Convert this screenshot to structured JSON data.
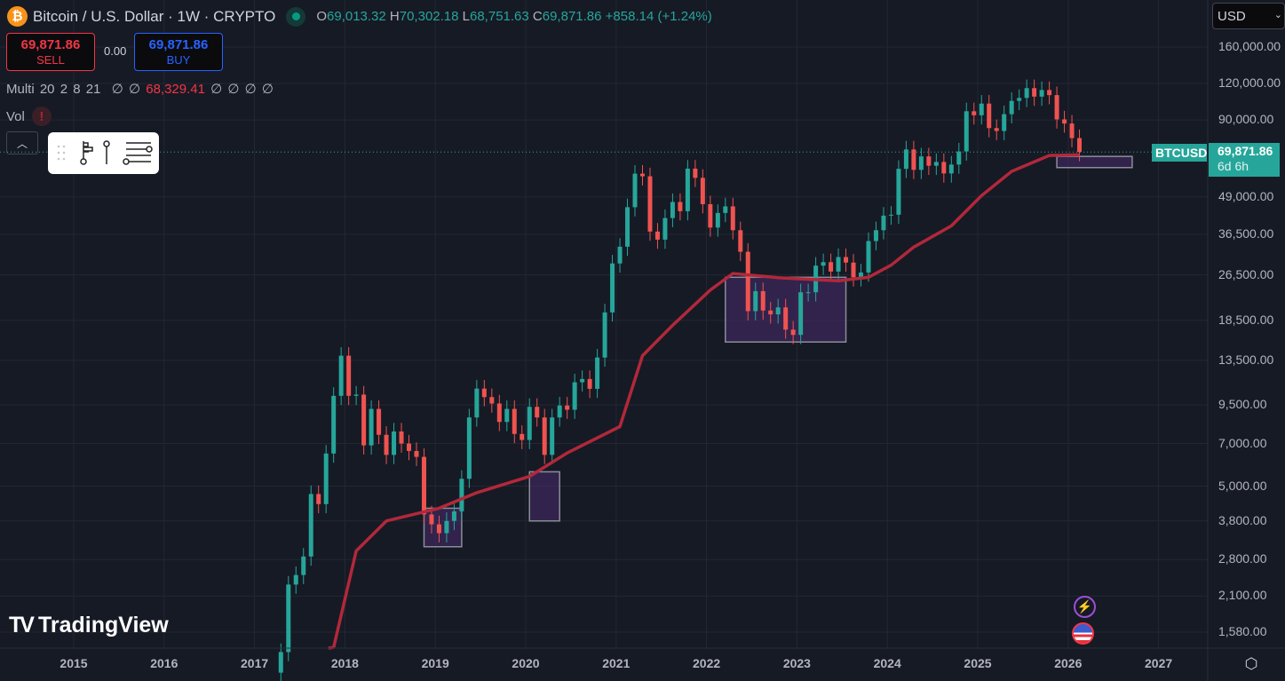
{
  "header": {
    "symbol_icon": "bitcoin-icon",
    "title": "Bitcoin / U.S. Dollar · 1W · CRYPTO",
    "market_status": "open",
    "ohlc": {
      "o_label": "O",
      "o": "69,013.32",
      "h_label": "H",
      "h": "70,302.18",
      "l_label": "L",
      "l": "68,751.63",
      "c_label": "C",
      "c": "69,871.86",
      "change": "+858.14 (+1.24%)"
    }
  },
  "trade": {
    "sell_price": "69,871.86",
    "sell_label": "SELL",
    "spread": "0.00",
    "buy_price": "69,871.86",
    "buy_label": "BUY"
  },
  "indicators": {
    "multi_label": "Multi 20 2 8 21",
    "multi_values_before": "∅ ∅",
    "multi_value": "68,329.41",
    "multi_values_after": "∅ ∅ ∅ ∅",
    "vol_label": "Vol",
    "vol_warning": "!"
  },
  "toolbar": {
    "icons": [
      "drag-handle-icon",
      "fib-tool-icon",
      "pin-line-icon",
      "horizontal-lines-icon"
    ]
  },
  "price_axis": {
    "currency": "USD",
    "ticks": [
      "160,000.00",
      "120,000.00",
      "90,000.00",
      "49,000.00",
      "36,500.00",
      "26,500.00",
      "18,500.00",
      "13,500.00",
      "9,500.00",
      "7,000.00",
      "5,000.00",
      "3,800.00",
      "2,800.00",
      "2,100.00",
      "1,580.00"
    ],
    "symbol_tag": "BTCUSD",
    "last_price": "69,871.86",
    "countdown": "6d 6h"
  },
  "time_axis": {
    "ticks": [
      "2015",
      "2016",
      "2017",
      "2018",
      "2019",
      "2020",
      "2021",
      "2022",
      "2023",
      "2024",
      "2025",
      "2026",
      "2027"
    ]
  },
  "branding": {
    "logo": "TradingView"
  },
  "colors": {
    "bg": "#161a25",
    "up": "#26a69a",
    "down": "#ef5350",
    "ma": "#b2283a",
    "box_fill": "#4a2c6e",
    "box_stroke": "#8a8d99"
  },
  "chart_data": {
    "type": "candlestick",
    "title": "Bitcoin / U.S. Dollar · 1W · CRYPTO",
    "y_scale": "log",
    "ylim": [
      1400,
      180000
    ],
    "xlim": [
      "2014-09",
      "2027-08"
    ],
    "grid": true,
    "price_series_approx_monthly_close": {
      "dates": [
        "2017-04",
        "2017-05",
        "2017-06",
        "2017-07",
        "2017-08",
        "2017-09",
        "2017-10",
        "2017-11",
        "2017-12",
        "2018-01",
        "2018-02",
        "2018-03",
        "2018-04",
        "2018-05",
        "2018-06",
        "2018-07",
        "2018-08",
        "2018-09",
        "2018-10",
        "2018-11",
        "2018-12",
        "2019-01",
        "2019-02",
        "2019-03",
        "2019-04",
        "2019-05",
        "2019-06",
        "2019-07",
        "2019-08",
        "2019-09",
        "2019-10",
        "2019-11",
        "2019-12",
        "2020-01",
        "2020-02",
        "2020-03",
        "2020-04",
        "2020-05",
        "2020-06",
        "2020-07",
        "2020-08",
        "2020-09",
        "2020-10",
        "2020-11",
        "2020-12",
        "2021-01",
        "2021-02",
        "2021-03",
        "2021-04",
        "2021-05",
        "2021-06",
        "2021-07",
        "2021-08",
        "2021-09",
        "2021-10",
        "2021-11",
        "2021-12",
        "2022-01",
        "2022-02",
        "2022-03",
        "2022-04",
        "2022-05",
        "2022-06",
        "2022-07",
        "2022-08",
        "2022-09",
        "2022-10",
        "2022-11",
        "2022-12",
        "2023-01",
        "2023-02",
        "2023-03",
        "2023-04",
        "2023-05",
        "2023-06",
        "2023-07",
        "2023-08",
        "2023-09",
        "2023-10",
        "2023-11",
        "2023-12",
        "2024-01",
        "2024-02",
        "2024-03",
        "2024-04",
        "2024-05",
        "2024-06",
        "2024-07",
        "2024-08",
        "2024-09",
        "2024-10",
        "2024-11",
        "2024-12",
        "2025-01",
        "2025-02",
        "2025-03",
        "2025-04",
        "2025-05",
        "2025-06",
        "2025-07",
        "2025-08",
        "2025-09",
        "2025-10",
        "2025-11",
        "2025-12",
        "2026-01",
        "2026-02"
      ],
      "close": [
        1350,
        2300,
        2480,
        2870,
        4700,
        4340,
        6470,
        10200,
        14000,
        10200,
        10300,
        6900,
        9200,
        7500,
        6400,
        7700,
        7000,
        6600,
        6300,
        4000,
        3700,
        3450,
        3800,
        4100,
        5300,
        8600,
        10800,
        10100,
        9600,
        8300,
        9200,
        7550,
        7200,
        9350,
        8600,
        6400,
        8600,
        9450,
        9140,
        11350,
        11650,
        10780,
        13800,
        19700,
        29000,
        33100,
        45200,
        58900,
        57700,
        37300,
        35000,
        41500,
        47100,
        43800,
        61300,
        57000,
        46300,
        38500,
        43200,
        45500,
        37700,
        31800,
        19900,
        23300,
        20000,
        19400,
        20500,
        17200,
        16500,
        23100,
        23100,
        28500,
        29300,
        27200,
        30500,
        29200,
        26000,
        27000,
        34600,
        37700,
        42300,
        42600,
        61200,
        71300,
        60700,
        67500,
        62700,
        64600,
        59000,
        63300,
        70200,
        96400,
        93400,
        102400,
        84400,
        82500,
        94200,
        104600,
        107100,
        115700,
        108200,
        114000,
        109500,
        90400,
        87500,
        78000,
        69871.86
      ]
    },
    "moving_average": {
      "name": "Multi 20 2 8 21",
      "dates": [
        "2017-11",
        "2018-02",
        "2018-06",
        "2019-01",
        "2019-06",
        "2020-01",
        "2020-06",
        "2021-01",
        "2021-04",
        "2021-08",
        "2022-01",
        "2022-04",
        "2022-10",
        "2023-06",
        "2023-10",
        "2024-01",
        "2024-04",
        "2024-09",
        "2025-01",
        "2025-05",
        "2025-10",
        "2026-02"
      ],
      "values": [
        1400,
        3000,
        3800,
        4200,
        4750,
        5400,
        6500,
        8000,
        14000,
        17800,
        23500,
        26800,
        25900,
        25300,
        26000,
        28600,
        33000,
        39000,
        49500,
        60000,
        68000,
        68329.41
      ]
    },
    "annotations": [
      {
        "type": "rectangle",
        "from": "2018-11",
        "to": "2019-04",
        "price_high": 4200,
        "price_low": 3100
      },
      {
        "type": "rectangle",
        "from": "2020-01",
        "to": "2020-05",
        "price_high": 5600,
        "price_low": 3800
      },
      {
        "type": "rectangle",
        "from": "2022-03",
        "to": "2023-07",
        "price_high": 26000,
        "price_low": 15600
      },
      {
        "type": "rectangle",
        "from": "2025-11",
        "to": "2026-09",
        "price_high": 67500,
        "price_low": 61800
      },
      {
        "type": "horizontal-line",
        "price": 69871.86,
        "style": "dotted"
      }
    ]
  }
}
